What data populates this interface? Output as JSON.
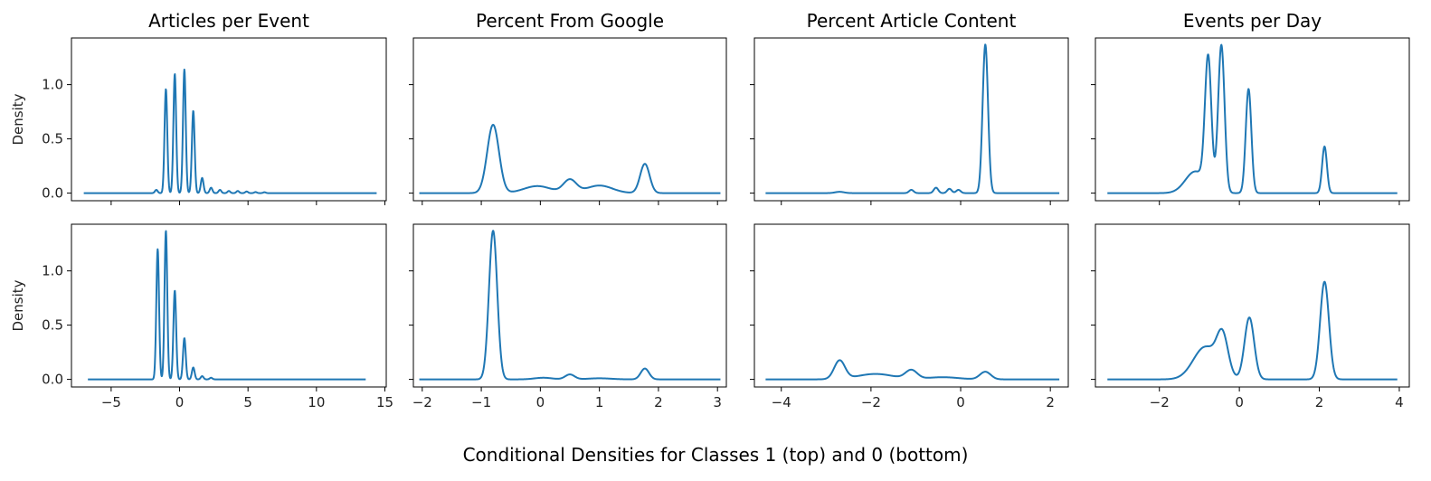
{
  "figure": {
    "suptitle": "Conditional Densities for Classes 1 (top) and 0 (bottom)",
    "line_color": "#1f77b4"
  },
  "chart_data": [
    {
      "type": "line",
      "title": "Articles per Event",
      "ylabel": "Density",
      "xlim": [
        -7.9,
        15.1
      ],
      "ylim": [
        -0.07,
        1.43
      ],
      "xticks": [
        -5,
        0,
        5,
        10,
        15
      ],
      "xtick_labels": [],
      "yticks": [
        0.0,
        0.5,
        1.0
      ],
      "ytick_labels": [
        "0.0",
        "0.5",
        "1.0"
      ],
      "domain": [
        -7.0,
        14.4
      ],
      "baseline": 0.0,
      "peaks": [
        {
          "x": -1.7,
          "h": 0.03,
          "w": 0.1
        },
        {
          "x": -1.0,
          "h": 0.96,
          "w": 0.1
        },
        {
          "x": -0.35,
          "h": 1.1,
          "w": 0.1
        },
        {
          "x": 0.35,
          "h": 1.14,
          "w": 0.1
        },
        {
          "x": 1.0,
          "h": 0.76,
          "w": 0.1
        },
        {
          "x": 1.65,
          "h": 0.14,
          "w": 0.1
        },
        {
          "x": 2.3,
          "h": 0.05,
          "w": 0.1
        },
        {
          "x": 2.95,
          "h": 0.03,
          "w": 0.1
        },
        {
          "x": 3.6,
          "h": 0.02,
          "w": 0.1
        },
        {
          "x": 4.25,
          "h": 0.02,
          "w": 0.1
        },
        {
          "x": 4.9,
          "h": 0.015,
          "w": 0.1
        },
        {
          "x": 5.55,
          "h": 0.01,
          "w": 0.1
        },
        {
          "x": 6.2,
          "h": 0.008,
          "w": 0.1
        }
      ]
    },
    {
      "type": "line",
      "title": "Percent From Google",
      "ylabel": "",
      "xlim": [
        -2.15,
        3.15
      ],
      "ylim": [
        -0.07,
        1.43
      ],
      "xticks": [
        -2,
        -1,
        0,
        1,
        2,
        3
      ],
      "xtick_labels": [],
      "yticks": [
        0.0,
        0.5,
        1.0
      ],
      "ytick_labels": [],
      "domain": [
        -2.05,
        3.05
      ],
      "baseline": 0.0,
      "peaks": [
        {
          "x": -0.8,
          "h": 0.63,
          "w": 0.1
        },
        {
          "x": -0.05,
          "h": 0.065,
          "w": 0.23
        },
        {
          "x": 0.5,
          "h": 0.12,
          "w": 0.11
        },
        {
          "x": 1.0,
          "h": 0.07,
          "w": 0.22
        },
        {
          "x": 1.77,
          "h": 0.27,
          "w": 0.08
        }
      ]
    },
    {
      "type": "line",
      "title": "Percent Article Content",
      "ylabel": "",
      "xlim": [
        -4.6,
        2.4
      ],
      "ylim": [
        -0.07,
        1.43
      ],
      "xticks": [
        -4,
        -2,
        0,
        2
      ],
      "xtick_labels": [],
      "yticks": [
        0.0,
        0.5,
        1.0
      ],
      "ytick_labels": [],
      "domain": [
        -4.35,
        2.2
      ],
      "baseline": 0.0,
      "peaks": [
        {
          "x": -2.7,
          "h": 0.012,
          "w": 0.1
        },
        {
          "x": -1.1,
          "h": 0.03,
          "w": 0.05
        },
        {
          "x": -0.55,
          "h": 0.05,
          "w": 0.05
        },
        {
          "x": -0.25,
          "h": 0.04,
          "w": 0.05
        },
        {
          "x": -0.05,
          "h": 0.03,
          "w": 0.05
        },
        {
          "x": 0.55,
          "h": 1.37,
          "w": 0.06
        }
      ]
    },
    {
      "type": "line",
      "title": "Events per Day",
      "ylabel": "",
      "xlim": [
        -3.6,
        4.25
      ],
      "ylim": [
        -0.07,
        1.43
      ],
      "xticks": [
        -2,
        0,
        2,
        4
      ],
      "xtick_labels": [],
      "yticks": [
        0.0,
        0.5,
        1.0
      ],
      "ytick_labels": [],
      "domain": [
        -3.3,
        3.95
      ],
      "baseline": 0.0,
      "peaks": [
        {
          "x": -1.1,
          "h": 0.2,
          "w": 0.25
        },
        {
          "x": -0.78,
          "h": 1.19,
          "w": 0.08
        },
        {
          "x": -0.45,
          "h": 1.36,
          "w": 0.08
        },
        {
          "x": 0.23,
          "h": 0.96,
          "w": 0.07
        },
        {
          "x": 2.13,
          "h": 0.43,
          "w": 0.06
        }
      ]
    },
    {
      "type": "line",
      "title": "",
      "ylabel": "Density",
      "xlim": [
        -7.9,
        15.1
      ],
      "ylim": [
        -0.07,
        1.43
      ],
      "xticks": [
        -5,
        0,
        5,
        10,
        15
      ],
      "xtick_labels": [
        "−5",
        "0",
        "5",
        "10",
        "15"
      ],
      "yticks": [
        0.0,
        0.5,
        1.0
      ],
      "ytick_labels": [
        "0.0",
        "0.5",
        "1.0"
      ],
      "domain": [
        -6.7,
        13.6
      ],
      "baseline": 0.0,
      "peaks": [
        {
          "x": -1.6,
          "h": 1.2,
          "w": 0.1
        },
        {
          "x": -1.0,
          "h": 1.37,
          "w": 0.1
        },
        {
          "x": -0.35,
          "h": 0.82,
          "w": 0.1
        },
        {
          "x": 0.35,
          "h": 0.38,
          "w": 0.1
        },
        {
          "x": 1.0,
          "h": 0.11,
          "w": 0.1
        },
        {
          "x": 1.65,
          "h": 0.03,
          "w": 0.1
        },
        {
          "x": 2.3,
          "h": 0.015,
          "w": 0.1
        }
      ]
    },
    {
      "type": "line",
      "title": "",
      "ylabel": "",
      "xlim": [
        -2.15,
        3.15
      ],
      "ylim": [
        -0.07,
        1.43
      ],
      "xticks": [
        -2,
        -1,
        0,
        1,
        2,
        3
      ],
      "xtick_labels": [
        "−2",
        "−1",
        "0",
        "1",
        "2",
        "3"
      ],
      "yticks": [
        0.0,
        0.5,
        1.0
      ],
      "ytick_labels": [],
      "domain": [
        -2.05,
        3.05
      ],
      "baseline": 0.0,
      "peaks": [
        {
          "x": -0.8,
          "h": 1.37,
          "w": 0.07
        },
        {
          "x": 0.05,
          "h": 0.015,
          "w": 0.15
        },
        {
          "x": 0.5,
          "h": 0.045,
          "w": 0.08
        },
        {
          "x": 1.0,
          "h": 0.01,
          "w": 0.2
        },
        {
          "x": 1.77,
          "h": 0.1,
          "w": 0.07
        }
      ]
    },
    {
      "type": "line",
      "title": "",
      "ylabel": "",
      "xlim": [
        -4.6,
        2.4
      ],
      "ylim": [
        -0.07,
        1.43
      ],
      "xticks": [
        -4,
        -2,
        0,
        2
      ],
      "xtick_labels": [
        "−4",
        "−2",
        "0",
        "2"
      ],
      "yticks": [
        0.0,
        0.5,
        1.0
      ],
      "ytick_labels": [],
      "domain": [
        -4.35,
        2.2
      ],
      "baseline": 0.0,
      "peaks": [
        {
          "x": -2.7,
          "h": 0.17,
          "w": 0.12
        },
        {
          "x": -1.9,
          "h": 0.05,
          "w": 0.4
        },
        {
          "x": -1.1,
          "h": 0.08,
          "w": 0.13
        },
        {
          "x": -0.4,
          "h": 0.02,
          "w": 0.35
        },
        {
          "x": 0.55,
          "h": 0.07,
          "w": 0.12
        }
      ]
    },
    {
      "type": "line",
      "title": "",
      "ylabel": "",
      "xlim": [
        -3.6,
        4.25
      ],
      "ylim": [
        -0.07,
        1.43
      ],
      "xticks": [
        -2,
        0,
        2,
        4
      ],
      "xtick_labels": [
        "−2",
        "0",
        "2",
        "4"
      ],
      "yticks": [
        0.0,
        0.5,
        1.0
      ],
      "ytick_labels": [],
      "domain": [
        -3.3,
        3.95
      ],
      "baseline": 0.0,
      "peaks": [
        {
          "x": -0.85,
          "h": 0.3,
          "w": 0.3
        },
        {
          "x": -0.42,
          "h": 0.35,
          "w": 0.14
        },
        {
          "x": 0.25,
          "h": 0.57,
          "w": 0.12
        },
        {
          "x": 2.13,
          "h": 0.9,
          "w": 0.11
        }
      ]
    }
  ]
}
